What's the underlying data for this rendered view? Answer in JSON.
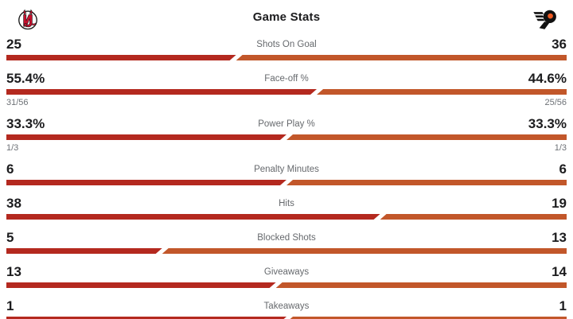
{
  "header": {
    "title": "Game Stats",
    "away_team": {
      "name": "New Jersey Devils",
      "logo": "devils-logo"
    },
    "home_team": {
      "name": "Philadelphia Flyers",
      "logo": "flyers-logo"
    }
  },
  "colors": {
    "away_bar": "#b4291f",
    "home_bar": "#c2572a",
    "value_text": "#1c1c1e",
    "label_text": "#66696d",
    "devils_red": "#c8102e",
    "flyers_orange": "#f05a22"
  },
  "stats": [
    {
      "label": "Shots On Goal",
      "away": "25",
      "home": "36",
      "away_pct": 41.0
    },
    {
      "label": "Face-off %",
      "away": "55.4%",
      "home": "44.6%",
      "away_sub": "31/56",
      "home_sub": "25/56",
      "away_pct": 55.4
    },
    {
      "label": "Power Play %",
      "away": "33.3%",
      "home": "33.3%",
      "away_sub": "1/3",
      "home_sub": "1/3",
      "away_pct": 50
    },
    {
      "label": "Penalty Minutes",
      "away": "6",
      "home": "6",
      "away_pct": 50
    },
    {
      "label": "Hits",
      "away": "38",
      "home": "19",
      "away_pct": 66.7
    },
    {
      "label": "Blocked Shots",
      "away": "5",
      "home": "13",
      "away_pct": 27.8
    },
    {
      "label": "Giveaways",
      "away": "13",
      "home": "14",
      "away_pct": 48.1
    },
    {
      "label": "Takeaways",
      "away": "1",
      "home": "1",
      "away_pct": 50
    }
  ],
  "chart_data": {
    "type": "bar",
    "title": "Game Stats",
    "categories": [
      "Shots On Goal",
      "Face-off %",
      "Power Play %",
      "Penalty Minutes",
      "Hits",
      "Blocked Shots",
      "Giveaways",
      "Takeaways"
    ],
    "series": [
      {
        "name": "New Jersey Devils",
        "values": [
          25,
          55.4,
          33.3,
          6,
          38,
          5,
          13,
          1
        ]
      },
      {
        "name": "Philadelphia Flyers",
        "values": [
          36,
          44.6,
          33.3,
          6,
          19,
          13,
          14,
          1
        ]
      }
    ],
    "sub_values": [
      {
        "category": "Face-off %",
        "away": "31/56",
        "home": "25/56"
      },
      {
        "category": "Power Play %",
        "away": "1/3",
        "home": "1/3"
      }
    ],
    "legend_position": "top",
    "grid": false
  }
}
